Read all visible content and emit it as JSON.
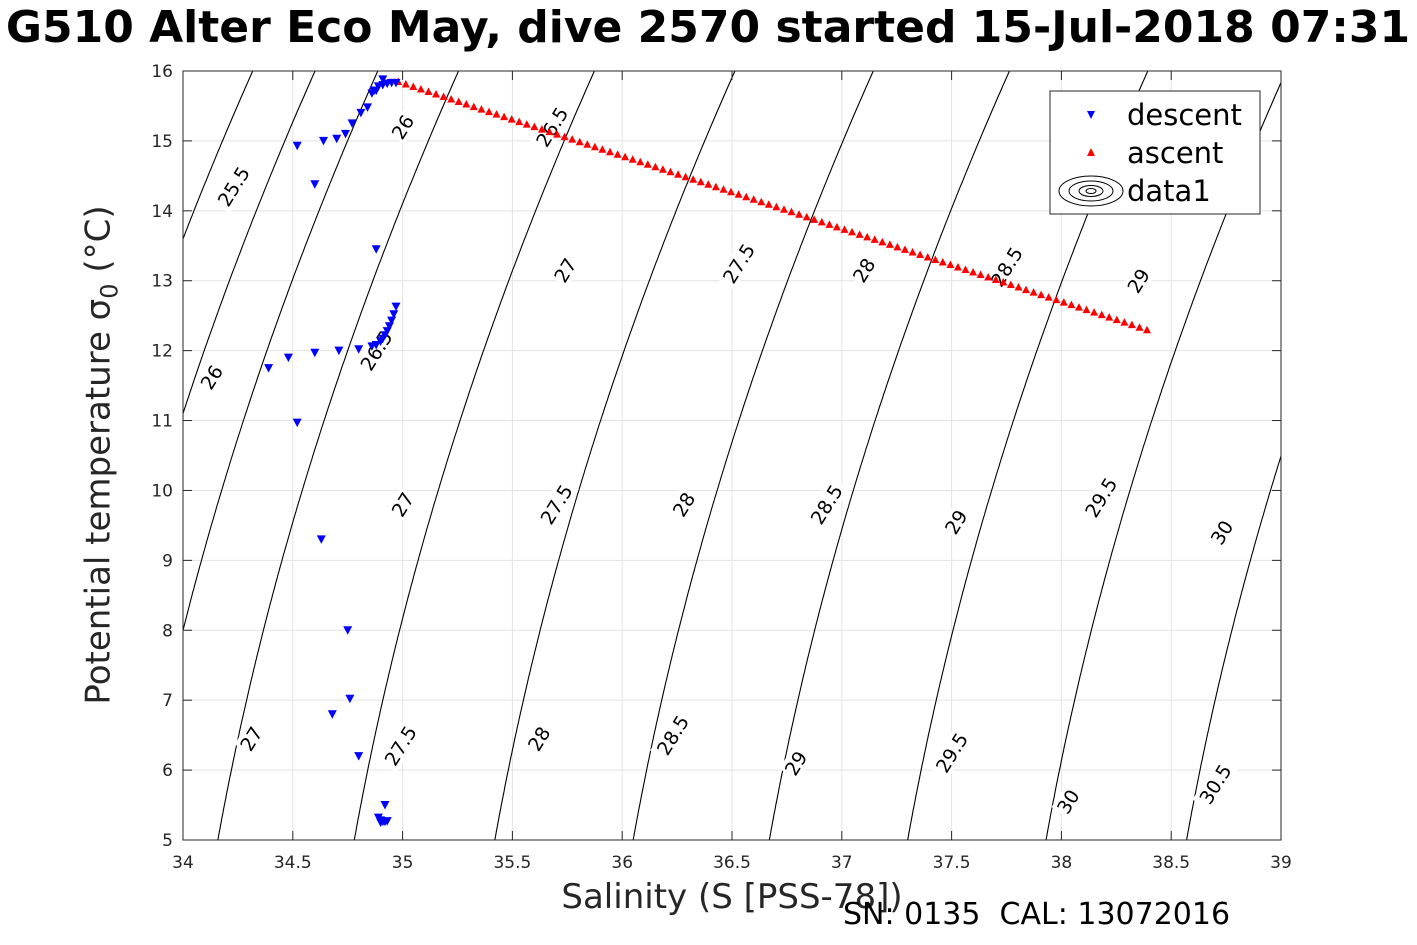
{
  "title": "G510 Alter Eco May, dive 2570 started 15-Jul-2018 07:31",
  "footer": "SN: 0135  CAL: 13072016",
  "chart_data": {
    "type": "scatter",
    "title": "G510 Alter Eco May, dive 2570 started 15-Jul-2018 07:31",
    "xlabel": "Salinity (S [PSS-78])",
    "ylabel_main": "Potential temperature σ",
    "ylabel_sub": "0",
    "ylabel_unit": " (°C)",
    "xlim": [
      34,
      39
    ],
    "ylim": [
      5,
      16
    ],
    "xticks": [
      34,
      34.5,
      35,
      35.5,
      36,
      36.5,
      37,
      37.5,
      38,
      38.5,
      39
    ],
    "yticks": [
      5,
      6,
      7,
      8,
      9,
      10,
      11,
      12,
      13,
      14,
      15,
      16
    ],
    "grid": true,
    "legend_position": "top-right",
    "legend": [
      "descent",
      "ascent",
      "data1"
    ],
    "series": [
      {
        "name": "descent",
        "marker": "triangle-down",
        "color": "#0000ff",
        "points": [
          [
            34.52,
            14.93
          ],
          [
            34.6,
            14.38
          ],
          [
            34.64,
            15.0
          ],
          [
            34.7,
            15.03
          ],
          [
            34.74,
            15.1
          ],
          [
            34.77,
            15.25
          ],
          [
            34.81,
            15.4
          ],
          [
            34.84,
            15.48
          ],
          [
            34.86,
            15.68
          ],
          [
            34.87,
            15.72
          ],
          [
            34.89,
            15.78
          ],
          [
            34.91,
            15.8
          ],
          [
            34.93,
            15.82
          ],
          [
            34.95,
            15.83
          ],
          [
            34.97,
            15.83
          ],
          [
            34.91,
            15.88
          ],
          [
            34.88,
            15.72
          ],
          [
            34.88,
            13.45
          ],
          [
            34.97,
            12.63
          ],
          [
            34.96,
            12.52
          ],
          [
            34.95,
            12.43
          ],
          [
            34.94,
            12.35
          ],
          [
            34.93,
            12.28
          ],
          [
            34.92,
            12.22
          ],
          [
            34.91,
            12.17
          ],
          [
            34.9,
            12.13
          ],
          [
            34.88,
            12.08
          ],
          [
            34.86,
            12.06
          ],
          [
            34.8,
            12.02
          ],
          [
            34.71,
            12.0
          ],
          [
            34.6,
            11.97
          ],
          [
            34.48,
            11.9
          ],
          [
            34.39,
            11.75
          ],
          [
            34.52,
            10.97
          ],
          [
            34.63,
            9.3
          ],
          [
            34.75,
            8.0
          ],
          [
            34.76,
            7.02
          ],
          [
            34.68,
            6.8
          ],
          [
            34.8,
            6.2
          ],
          [
            34.92,
            5.5
          ],
          [
            34.89,
            5.32
          ],
          [
            34.9,
            5.28
          ],
          [
            34.91,
            5.26
          ],
          [
            34.92,
            5.26
          ],
          [
            34.93,
            5.27
          ],
          [
            34.9,
            5.25
          ]
        ]
      },
      {
        "name": "ascent",
        "marker": "triangle-up",
        "color": "#ff0000",
        "start": [
          34.98,
          15.85
        ],
        "end": [
          38.39,
          12.3
        ],
        "count": 100
      }
    ],
    "density_contours": {
      "levels": [
        25.5,
        26,
        26.5,
        27,
        27.5,
        28,
        28.5,
        29,
        29.5,
        30,
        30.5
      ],
      "lines": [
        {
          "level": 25.5,
          "anchor": [
            34.0,
            13.6
          ]
        },
        {
          "level": 26,
          "anchor": [
            34.0,
            11.1
          ]
        },
        {
          "level": 26.5,
          "anchor": [
            34.75,
            12.0
          ]
        },
        {
          "level": 27,
          "anchor": [
            34.0,
            8.0
          ]
        },
        {
          "level": 27.5,
          "anchor": [
            34.78,
            5.0
          ]
        },
        {
          "level": 28,
          "anchor": [
            35.42,
            5.0
          ]
        },
        {
          "level": 28.5,
          "anchor": [
            36.05,
            5.0
          ]
        },
        {
          "level": 29,
          "anchor": [
            36.67,
            5.0
          ]
        },
        {
          "level": 29.5,
          "anchor": [
            37.3,
            5.0
          ]
        },
        {
          "level": 30,
          "anchor": [
            37.93,
            5.0
          ]
        },
        {
          "level": 30.5,
          "anchor": [
            38.57,
            5.0
          ]
        }
      ],
      "labels": [
        {
          "text": "25.5",
          "at": [
            34.23,
            14.35
          ]
        },
        {
          "text": "26",
          "at": [
            35.0,
            15.2
          ]
        },
        {
          "text": "26.5",
          "at": [
            35.68,
            15.2
          ]
        },
        {
          "text": "26",
          "at": [
            34.13,
            11.62
          ]
        },
        {
          "text": "26.5",
          "at": [
            34.88,
            12.0
          ]
        },
        {
          "text": "27",
          "at": [
            35.74,
            13.15
          ]
        },
        {
          "text": "27.5",
          "at": [
            36.53,
            13.25
          ]
        },
        {
          "text": "28",
          "at": [
            37.1,
            13.15
          ]
        },
        {
          "text": "28.5",
          "at": [
            37.75,
            13.2
          ]
        },
        {
          "text": "29",
          "at": [
            38.35,
            13.0
          ]
        },
        {
          "text": "27",
          "at": [
            35.0,
            9.8
          ]
        },
        {
          "text": "27.5",
          "at": [
            35.7,
            9.8
          ]
        },
        {
          "text": "28",
          "at": [
            36.28,
            9.8
          ]
        },
        {
          "text": "28.5",
          "at": [
            36.93,
            9.8
          ]
        },
        {
          "text": "29",
          "at": [
            37.52,
            9.55
          ]
        },
        {
          "text": "29.5",
          "at": [
            38.18,
            9.9
          ]
        },
        {
          "text": "30",
          "at": [
            38.73,
            9.4
          ]
        },
        {
          "text": "27",
          "at": [
            34.31,
            6.45
          ]
        },
        {
          "text": "27.5",
          "at": [
            34.99,
            6.35
          ]
        },
        {
          "text": "28",
          "at": [
            35.62,
            6.45
          ]
        },
        {
          "text": "28.5",
          "at": [
            36.23,
            6.5
          ]
        },
        {
          "text": "29",
          "at": [
            36.79,
            6.1
          ]
        },
        {
          "text": "29.5",
          "at": [
            37.5,
            6.25
          ]
        },
        {
          "text": "30",
          "at": [
            38.03,
            5.55
          ]
        },
        {
          "text": "30.5",
          "at": [
            38.7,
            5.8
          ]
        }
      ]
    }
  }
}
